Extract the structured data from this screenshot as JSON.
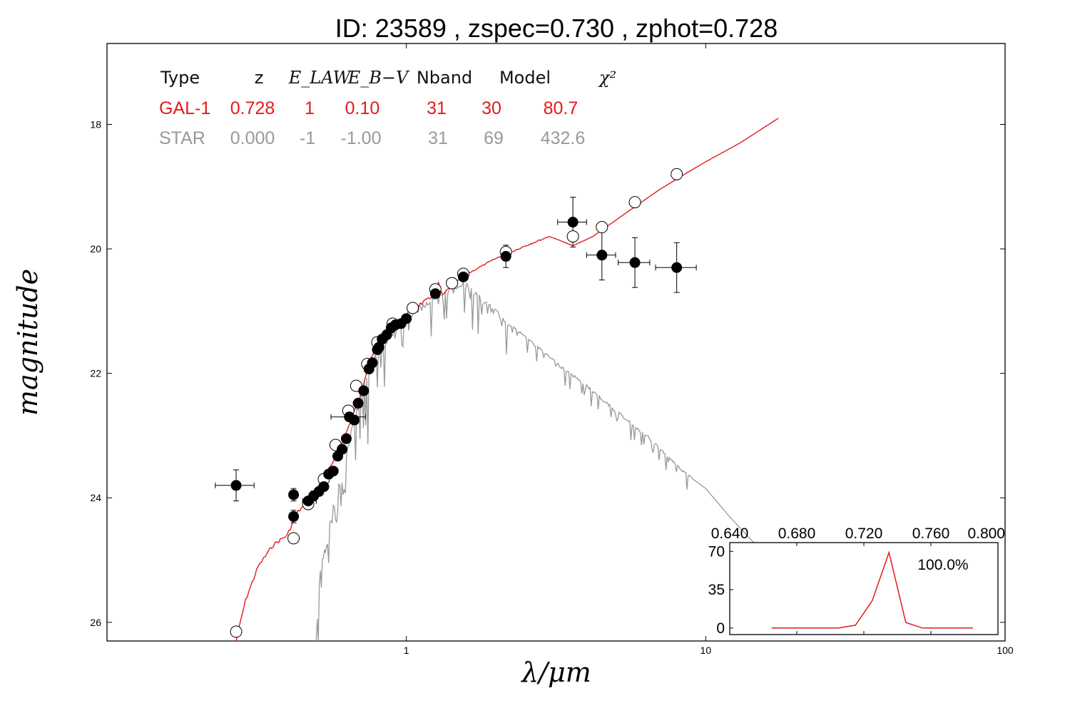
{
  "colors": {
    "galaxy": "#e41a1c",
    "star": "#999999",
    "axis": "#000000",
    "points": "#000000"
  },
  "chart_data": [
    {
      "type": "scatter",
      "title": "ID:  23589 , zspec=0.730 , zphot=0.728",
      "xlabel": "λ/μm",
      "ylabel": "magnitude",
      "xscale": "log",
      "xlim": [
        0.1,
        100
      ],
      "ylim": [
        26.3,
        16.7
      ],
      "y_inverted": true,
      "x_ticks": [
        {
          "value": 1,
          "label": "1"
        },
        {
          "value": 10,
          "label": "10"
        },
        {
          "value": 100,
          "label": "100"
        }
      ],
      "y_ticks": [
        {
          "value": 18,
          "label": "18"
        },
        {
          "value": 20,
          "label": "20"
        },
        {
          "value": 22,
          "label": "22"
        },
        {
          "value": 24,
          "label": "24"
        },
        {
          "value": 26,
          "label": "26"
        }
      ],
      "fit_table": {
        "headers": [
          "Type",
          "z",
          "E_LAW",
          "E_B−V",
          "Nband",
          "Model",
          "χ²"
        ],
        "rows": [
          {
            "type": "GAL-1",
            "z": "0.728",
            "e_law": "1",
            "ebv": "0.10",
            "nband": "31",
            "model": "30",
            "chi2": "80.7"
          },
          {
            "type": "STAR",
            "z": "0.000",
            "e_law": "-1",
            "ebv": "-1.00",
            "nband": "31",
            "model": "69",
            "chi2": "432.6"
          }
        ]
      },
      "series": [
        {
          "kind": "galaxy-model",
          "points": [
            [
              0.27,
              26.3
            ],
            [
              0.29,
              25.65
            ],
            [
              0.32,
              25.1
            ],
            [
              0.36,
              24.75
            ],
            [
              0.4,
              24.6
            ],
            [
              0.43,
              24.25
            ],
            [
              0.47,
              24.05
            ],
            [
              0.5,
              23.85
            ],
            [
              0.55,
              23.55
            ],
            [
              0.6,
              23.2
            ],
            [
              0.65,
              22.8
            ],
            [
              0.7,
              22.35
            ],
            [
              0.75,
              21.85
            ],
            [
              0.8,
              21.55
            ],
            [
              0.9,
              21.25
            ],
            [
              1.0,
              21.05
            ],
            [
              1.1,
              20.9
            ],
            [
              1.2,
              20.8
            ],
            [
              1.25,
              20.7
            ],
            [
              1.28,
              20.55
            ],
            [
              1.32,
              20.75
            ],
            [
              1.4,
              20.6
            ],
            [
              1.6,
              20.4
            ],
            [
              2.0,
              20.15
            ],
            [
              2.5,
              19.95
            ],
            [
              3.0,
              19.8
            ],
            [
              3.2,
              19.85
            ],
            [
              3.6,
              19.95
            ],
            [
              4.2,
              19.8
            ],
            [
              5.5,
              19.4
            ],
            [
              7,
              19.05
            ],
            [
              8.5,
              18.8
            ],
            [
              10,
              18.6
            ],
            [
              13,
              18.3
            ],
            [
              17.5,
              17.9
            ]
          ]
        },
        {
          "kind": "star-model",
          "points": [
            [
              0.5,
              26.3
            ],
            [
              0.52,
              25.0
            ],
            [
              0.55,
              24.6
            ],
            [
              0.58,
              24.0
            ],
            [
              0.62,
              23.4
            ],
            [
              0.66,
              22.9
            ],
            [
              0.7,
              22.4
            ],
            [
              0.75,
              21.95
            ],
            [
              0.8,
              21.65
            ],
            [
              0.9,
              21.35
            ],
            [
              1.0,
              21.1
            ],
            [
              1.2,
              20.85
            ],
            [
              1.4,
              20.65
            ],
            [
              1.55,
              20.55
            ],
            [
              1.8,
              20.85
            ],
            [
              2.2,
              21.2
            ],
            [
              2.7,
              21.55
            ],
            [
              3.3,
              21.9
            ],
            [
              4.0,
              22.2
            ],
            [
              5.0,
              22.6
            ],
            [
              6.5,
              23.05
            ],
            [
              8.5,
              23.6
            ],
            [
              10,
              23.85
            ],
            [
              12,
              24.3
            ],
            [
              15,
              24.8
            ],
            [
              18.5,
              25.1
            ]
          ]
        },
        {
          "kind": "model-magnitudes",
          "points": [
            [
              0.27,
              26.15
            ],
            [
              0.42,
              24.65
            ],
            [
              0.47,
              24.1
            ],
            [
              0.53,
              23.7
            ],
            [
              0.58,
              23.15
            ],
            [
              0.64,
              22.6
            ],
            [
              0.68,
              22.2
            ],
            [
              0.74,
              21.85
            ],
            [
              0.8,
              21.5
            ],
            [
              0.9,
              21.2
            ],
            [
              1.05,
              20.95
            ],
            [
              1.25,
              20.65
            ],
            [
              1.42,
              20.55
            ],
            [
              1.55,
              20.4
            ],
            [
              2.15,
              20.05
            ],
            [
              3.6,
              19.8
            ],
            [
              4.5,
              19.65
            ],
            [
              5.8,
              19.25
            ],
            [
              8.0,
              18.8
            ]
          ]
        },
        {
          "kind": "observed",
          "points": [
            {
              "x": 0.27,
              "y": 23.8,
              "xerr": [
                0.23,
                0.31
              ],
              "yerr": 0.25
            },
            {
              "x": 0.42,
              "y": 23.95,
              "yerr": 0.1
            },
            {
              "x": 0.42,
              "y": 24.3,
              "yerr": 0.1
            },
            {
              "x": 0.47,
              "y": 24.05,
              "xerr": [
                0.45,
                0.5
              ]
            },
            {
              "x": 0.49,
              "y": 23.97,
              "yerr": 0.08
            },
            {
              "x": 0.51,
              "y": 23.9
            },
            {
              "x": 0.53,
              "y": 23.82
            },
            {
              "x": 0.55,
              "y": 23.62
            },
            {
              "x": 0.57,
              "y": 23.57
            },
            {
              "x": 0.59,
              "y": 23.33
            },
            {
              "x": 0.61,
              "y": 23.22
            },
            {
              "x": 0.63,
              "y": 23.05
            },
            {
              "x": 0.645,
              "y": 22.7,
              "xerr": [
                0.56,
                0.73
              ]
            },
            {
              "x": 0.67,
              "y": 22.75
            },
            {
              "x": 0.69,
              "y": 22.48
            },
            {
              "x": 0.72,
              "y": 22.28
            },
            {
              "x": 0.75,
              "y": 21.93
            },
            {
              "x": 0.77,
              "y": 21.83
            },
            {
              "x": 0.8,
              "y": 21.62
            },
            {
              "x": 0.81,
              "y": 21.58
            },
            {
              "x": 0.83,
              "y": 21.45
            },
            {
              "x": 0.86,
              "y": 21.38
            },
            {
              "x": 0.89,
              "y": 21.27
            },
            {
              "x": 0.92,
              "y": 21.22
            },
            {
              "x": 0.96,
              "y": 21.2
            },
            {
              "x": 1.0,
              "y": 21.12
            },
            {
              "x": 1.25,
              "y": 20.72
            },
            {
              "x": 1.55,
              "y": 20.45
            },
            {
              "x": 2.15,
              "y": 20.12,
              "yerr": 0.18
            },
            {
              "x": 3.6,
              "y": 19.57,
              "xerr": [
                3.2,
                4.0
              ],
              "yerr": 0.4
            },
            {
              "x": 4.5,
              "y": 20.1,
              "xerr": [
                4.0,
                5.0
              ],
              "yerr": 0.4
            },
            {
              "x": 5.8,
              "y": 20.22,
              "xerr": [
                5.1,
                6.5
              ],
              "yerr": 0.4
            },
            {
              "x": 8.0,
              "y": 20.3,
              "xerr": [
                6.8,
                9.3
              ],
              "yerr": 0.4
            }
          ]
        }
      ]
    },
    {
      "type": "line",
      "inset": true,
      "x_ticks": [
        "0.640",
        "0.680",
        "0.720",
        "0.760",
        "0.800"
      ],
      "xlim": [
        0.64,
        0.8
      ],
      "y_ticks": [
        "0",
        "35",
        "70"
      ],
      "ylim": [
        -6,
        78
      ],
      "annotation": "100.0%",
      "x": [
        0.665,
        0.705,
        0.715,
        0.725,
        0.735,
        0.745,
        0.755,
        0.785
      ],
      "y": [
        0,
        0,
        2.5,
        25,
        69,
        5,
        0,
        0
      ]
    }
  ]
}
